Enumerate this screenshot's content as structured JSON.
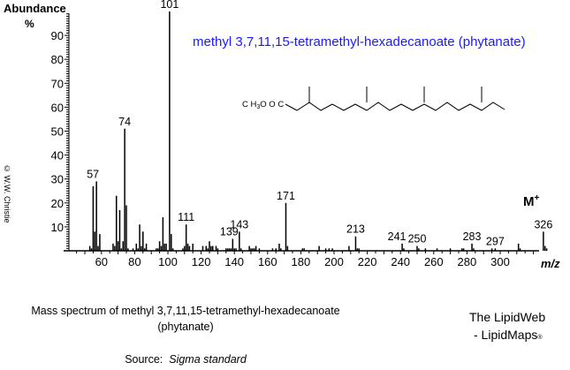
{
  "chart_data": {
    "type": "bar",
    "title": "methyl 3,7,11,15-tetramethyl-hexadecanoate (phytanate)",
    "xlabel": "m/z",
    "ylabel": "Abundance %",
    "xlim": [
      40,
      340
    ],
    "ylim": [
      0,
      100
    ],
    "x_ticks": [
      60,
      80,
      100,
      120,
      140,
      160,
      180,
      200,
      220,
      240,
      260,
      280,
      300
    ],
    "y_ticks": [
      10,
      20,
      30,
      40,
      50,
      60,
      70,
      80,
      90
    ],
    "grid": false,
    "peaks": [
      [
        53,
        2
      ],
      [
        54,
        1
      ],
      [
        55,
        27
      ],
      [
        56,
        8
      ],
      [
        57,
        29
      ],
      [
        58,
        2
      ],
      [
        59,
        7
      ],
      [
        67,
        3
      ],
      [
        68,
        2
      ],
      [
        69,
        23
      ],
      [
        70,
        4
      ],
      [
        71,
        17
      ],
      [
        72,
        1
      ],
      [
        73,
        4
      ],
      [
        74,
        51
      ],
      [
        75,
        19
      ],
      [
        76,
        1
      ],
      [
        79,
        1
      ],
      [
        81,
        3
      ],
      [
        82,
        1
      ],
      [
        83,
        11
      ],
      [
        84,
        2
      ],
      [
        85,
        8
      ],
      [
        86,
        1
      ],
      [
        87,
        3
      ],
      [
        93,
        1
      ],
      [
        94,
        1
      ],
      [
        95,
        4
      ],
      [
        96,
        2
      ],
      [
        97,
        14
      ],
      [
        98,
        3
      ],
      [
        99,
        3
      ],
      [
        101,
        100
      ],
      [
        102,
        7
      ],
      [
        103,
        1
      ],
      [
        109,
        1
      ],
      [
        110,
        2
      ],
      [
        111,
        11
      ],
      [
        112,
        3
      ],
      [
        113,
        2
      ],
      [
        115,
        3
      ],
      [
        121,
        2
      ],
      [
        123,
        2
      ],
      [
        124,
        1
      ],
      [
        125,
        4
      ],
      [
        126,
        2
      ],
      [
        127,
        2
      ],
      [
        129,
        2
      ],
      [
        130,
        1
      ],
      [
        135,
        1
      ],
      [
        136,
        1
      ],
      [
        137,
        1
      ],
      [
        138,
        1
      ],
      [
        139,
        5
      ],
      [
        140,
        1
      ],
      [
        141,
        1
      ],
      [
        143,
        8
      ],
      [
        144,
        1
      ],
      [
        149,
        2
      ],
      [
        150,
        1
      ],
      [
        151,
        1
      ],
      [
        152,
        1
      ],
      [
        153,
        2
      ],
      [
        155,
        1
      ],
      [
        163,
        1
      ],
      [
        165,
        1
      ],
      [
        167,
        3
      ],
      [
        168,
        1
      ],
      [
        171,
        20
      ],
      [
        172,
        2
      ],
      [
        181,
        1
      ],
      [
        182,
        1
      ],
      [
        191,
        2
      ],
      [
        195,
        1
      ],
      [
        197,
        1
      ],
      [
        199,
        1
      ],
      [
        209,
        2
      ],
      [
        213,
        6
      ],
      [
        214,
        1
      ],
      [
        215,
        1
      ],
      [
        241,
        3
      ],
      [
        242,
        1
      ],
      [
        250,
        2
      ],
      [
        251,
        1
      ],
      [
        255,
        1
      ],
      [
        262,
        1
      ],
      [
        270,
        1
      ],
      [
        277,
        1
      ],
      [
        278,
        1
      ],
      [
        283,
        3
      ],
      [
        284,
        1
      ],
      [
        295,
        1
      ],
      [
        297,
        1
      ],
      [
        311,
        3
      ],
      [
        312,
        1
      ],
      [
        326,
        8
      ],
      [
        327,
        2
      ],
      [
        328,
        1
      ]
    ],
    "annotations": [
      {
        "mz": 101,
        "label": "101",
        "value": 100
      },
      {
        "mz": 74,
        "label": "74",
        "value": 51
      },
      {
        "mz": 57,
        "label": "57",
        "value": 29
      },
      {
        "mz": 111,
        "label": "111",
        "value": 11
      },
      {
        "mz": 139,
        "label": "139",
        "value": 5
      },
      {
        "mz": 143,
        "label": "143",
        "value": 8
      },
      {
        "mz": 171,
        "label": "171",
        "value": 20
      },
      {
        "mz": 213,
        "label": "213",
        "value": 6
      },
      {
        "mz": 241,
        "label": "241",
        "value": 3
      },
      {
        "mz": 250,
        "label": "250",
        "value": 2
      },
      {
        "mz": 283,
        "label": "283",
        "value": 3
      },
      {
        "mz": 297,
        "label": "297",
        "value": 1
      },
      {
        "mz": 326,
        "label": "326",
        "value": 8
      }
    ],
    "molecular_ion_label": "M+"
  },
  "axis": {
    "y_title": "Abundance",
    "y_unit": "%",
    "x_title": "m/z"
  },
  "header": {
    "compound_title": "methyl 3,7,11,15-tetramethyl-hexadecanoate (phytanate)",
    "structure_prefix": "CH3OOC",
    "title_color": "#1a1aff"
  },
  "molecular_ion": {
    "main": "M",
    "sup": "+"
  },
  "copyright": "© W.W. Christie",
  "caption": {
    "line1": "Mass spectrum of methyl 3,7,11,15-tetramethyl-hexadecanoate",
    "line2": "(phytanate)",
    "source_label": "Source:",
    "source_value": "Sigma standard"
  },
  "brand": {
    "line1": "The LipidWeb",
    "line2": "- LipidMaps",
    "reg": "®"
  }
}
